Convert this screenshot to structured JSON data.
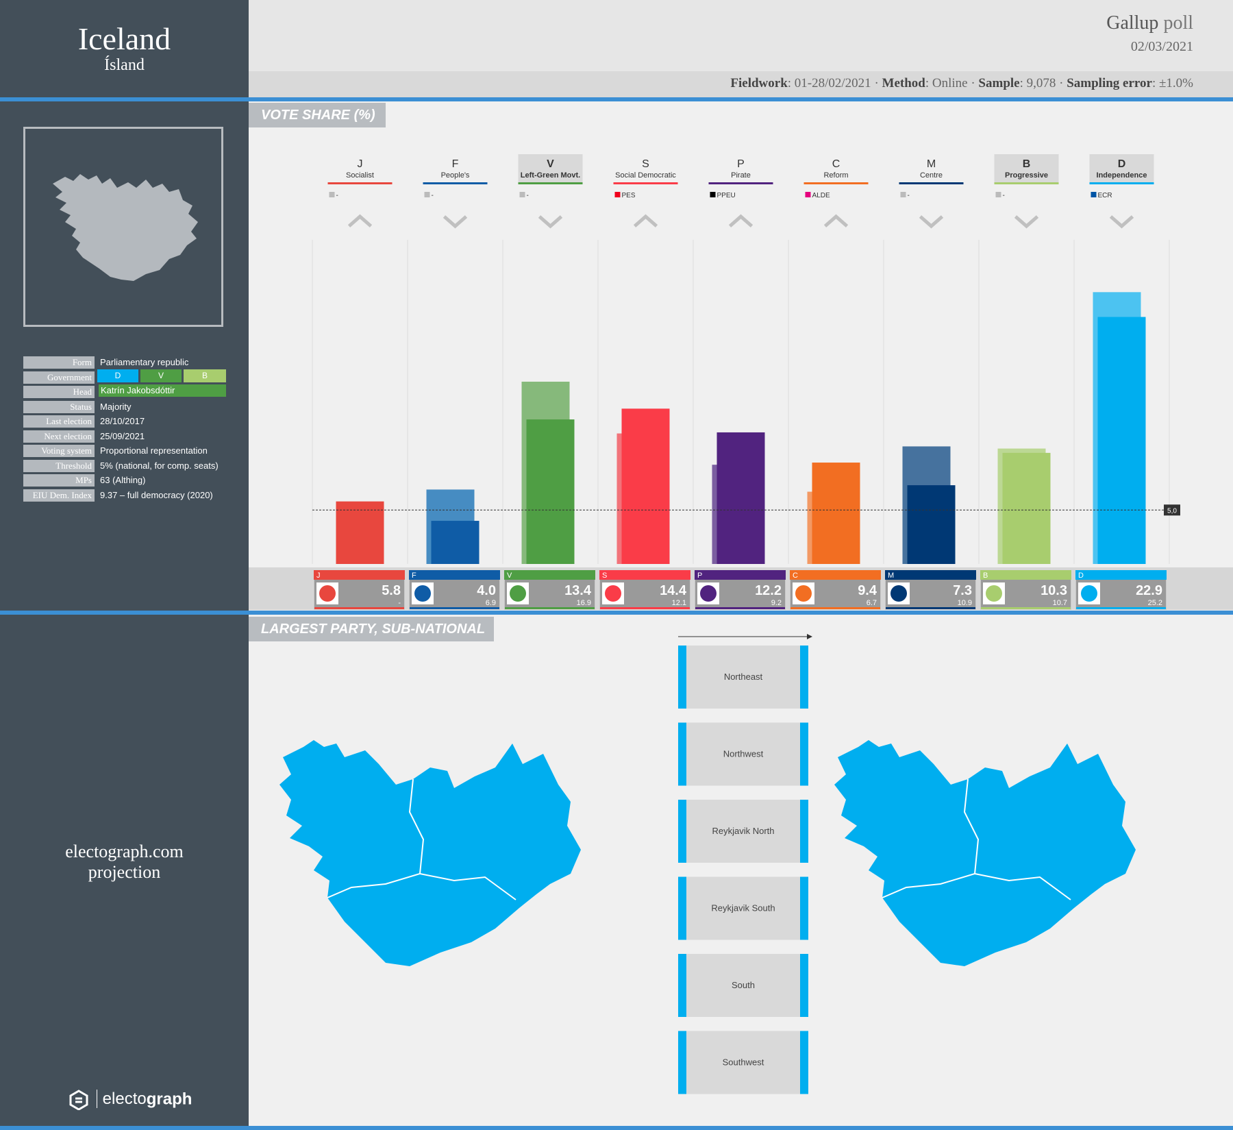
{
  "country": {
    "name": "Iceland",
    "native": "Ísland"
  },
  "poll": {
    "pollster": "Gallup",
    "poll_word": "poll",
    "date": "02/03/2021",
    "fieldwork_label": "Fieldwork",
    "fieldwork_value": "01-28/02/2021",
    "method_label": "Method",
    "method_value": "Online",
    "sample_label": "Sample",
    "sample_value": "9,078",
    "error_label": "Sampling error",
    "error_value": "±1.0%"
  },
  "info": [
    {
      "label": "Form",
      "value": "Parliamentary  republic"
    },
    {
      "label": "Government",
      "value": ""
    },
    {
      "label": "Head",
      "value": "Katrín Jakobsdóttir"
    },
    {
      "label": "Status",
      "value": "Majority"
    },
    {
      "label": "Last election",
      "value": "28/10/2017"
    },
    {
      "label": "Next election",
      "value": "25/09/2021"
    },
    {
      "label": "Voting system",
      "value": "Proportional  representation"
    },
    {
      "label": "Threshold",
      "value": "5% (national,  for comp. seats)"
    },
    {
      "label": "MPs",
      "value": "63 (Althing)"
    },
    {
      "label": "EIU Dem. Index",
      "value": "9.37 – full democracy  (2020)"
    }
  ],
  "government": [
    {
      "code": "D",
      "color": "#00aeef"
    },
    {
      "code": "V",
      "color": "#4f9e44"
    },
    {
      "code": "B",
      "color": "#a8cd6e"
    }
  ],
  "sidebar": {
    "projection_line1": "electograph.com",
    "projection_line2": "projection",
    "brand_light": "electo",
    "brand_bold": "graph"
  },
  "sections": {
    "vote_share": "VOTE SHARE (%)",
    "largest_party": "LARGEST PARTY, SUB-NATIONAL"
  },
  "regions": [
    "Northeast",
    "Northwest",
    "Reykjavik North",
    "Reykjavik South",
    "South",
    "Southwest"
  ],
  "chart_data": {
    "type": "bar",
    "title": "VOTE SHARE (%)",
    "threshold": 5.0,
    "threshold_label": "5,0",
    "ylim": [
      0,
      27
    ],
    "series_names": [
      "Poll (02/03/2021)",
      "Last election (28/10/2017)"
    ],
    "parties": [
      {
        "code": "J",
        "name": "Socialist",
        "group": "-",
        "group_color": "#bbbbbb",
        "trend": "up",
        "value": 5.8,
        "previous": null,
        "previous_label": "-",
        "color": "#e8473e",
        "prev_color": "#e8473e",
        "in_government": false,
        "logo": "star"
      },
      {
        "code": "F",
        "name": "People's",
        "group": "-",
        "group_color": "#bbbbbb",
        "trend": "down",
        "value": 4.0,
        "previous": 6.9,
        "previous_label": "6.9",
        "color": "#0f5ca6",
        "prev_color": "#468cc2",
        "in_government": false,
        "logo": "bird"
      },
      {
        "code": "V",
        "name": "Left-Green Movt.",
        "group": "-",
        "group_color": "#bbbbbb",
        "trend": "down",
        "value": 13.4,
        "previous": 16.9,
        "previous_label": "16.9",
        "color": "#4f9e44",
        "prev_color": "#86b97b",
        "in_government": true,
        "logo": "v"
      },
      {
        "code": "S",
        "name": "Social Democratic",
        "group": "PES",
        "group_color": "#f0001c",
        "trend": "up",
        "value": 14.4,
        "previous": 12.1,
        "previous_label": "12.1",
        "color": "#fa3c48",
        "prev_color": "#f2737a",
        "in_government": false,
        "logo": "xs"
      },
      {
        "code": "P",
        "name": "Pirate",
        "group": "PPEU",
        "group_color": "#000000",
        "trend": "up",
        "value": 12.2,
        "previous": 9.2,
        "previous_label": "9.2",
        "color": "#51237f",
        "prev_color": "#7b5ea0",
        "in_government": false,
        "logo": "p"
      },
      {
        "code": "C",
        "name": "Reform",
        "group": "ALDE",
        "group_color": "#e5007e",
        "trend": "up",
        "value": 9.4,
        "previous": 6.7,
        "previous_label": "6.7",
        "color": "#f26e22",
        "prev_color": "#f39964",
        "in_government": false,
        "logo": "c"
      },
      {
        "code": "M",
        "name": "Centre",
        "group": "-",
        "group_color": "#bbbbbb",
        "trend": "down",
        "value": 7.3,
        "previous": 10.9,
        "previous_label": "10.9",
        "color": "#003874",
        "prev_color": "#46729e",
        "in_government": false,
        "logo": "horse"
      },
      {
        "code": "B",
        "name": "Progressive",
        "group": "-",
        "group_color": "#bbbbbb",
        "trend": "down",
        "value": 10.3,
        "previous": 10.7,
        "previous_label": "10.7",
        "color": "#a8cd6e",
        "prev_color": "#bcd894",
        "in_government": true,
        "logo": "book"
      },
      {
        "code": "D",
        "name": "Independence",
        "group": "ECR",
        "group_color": "#0054a5",
        "trend": "down",
        "value": 22.9,
        "previous": 25.2,
        "previous_label": "25.2",
        "color": "#00aeef",
        "prev_color": "#4cc3f1",
        "in_government": true,
        "logo": "d"
      }
    ]
  }
}
